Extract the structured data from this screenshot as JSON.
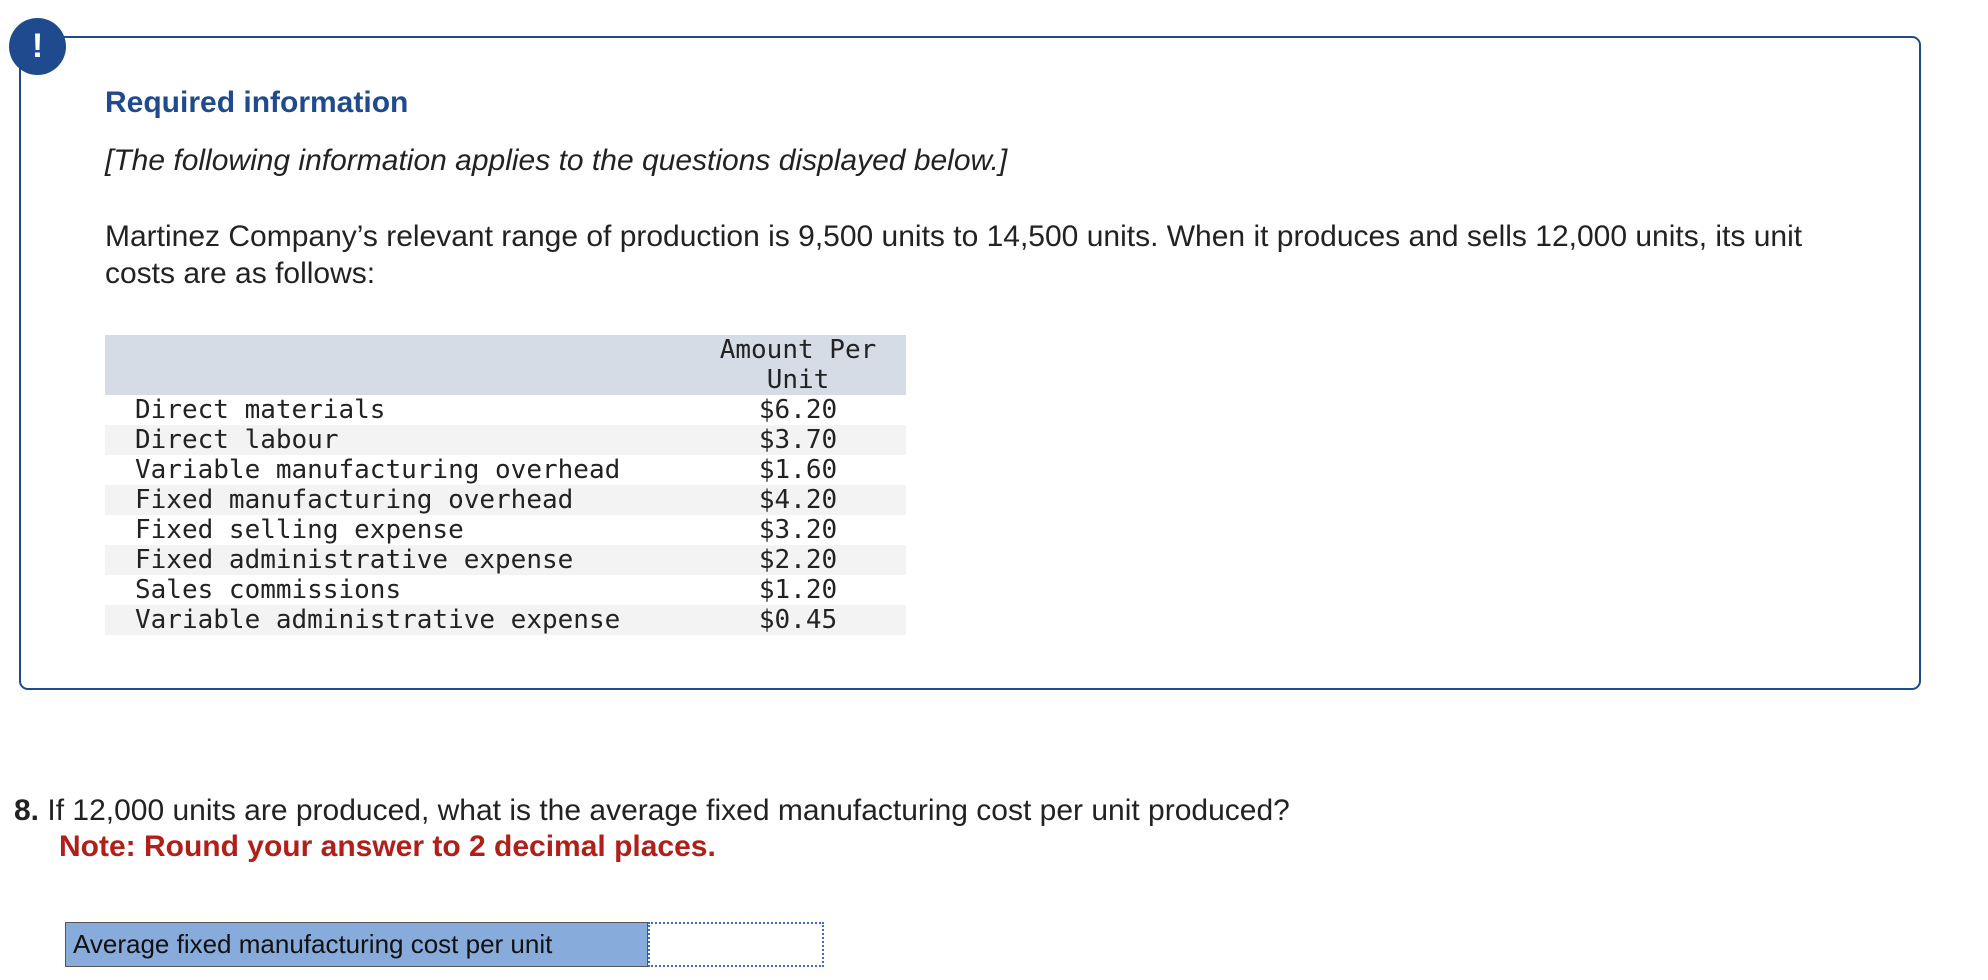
{
  "alert": {
    "icon": "exclamation-icon",
    "symbol": "!"
  },
  "info": {
    "title": "Required information",
    "note": "[The following information applies to the questions displayed below.]",
    "description": "Martinez Company’s relevant range of production is 9,500 units to 14,500 units. When it produces and sells 12,000 units, its unit costs are as follows:"
  },
  "table": {
    "headers": {
      "item": "",
      "amount": "Amount Per Unit"
    },
    "rows": [
      {
        "item": "Direct materials",
        "amount": "$6.20"
      },
      {
        "item": "Direct labour",
        "amount": "$3.70"
      },
      {
        "item": "Variable manufacturing overhead",
        "amount": "$1.60"
      },
      {
        "item": "Fixed manufacturing overhead",
        "amount": "$4.20"
      },
      {
        "item": "Fixed selling expense",
        "amount": "$3.20"
      },
      {
        "item": "Fixed administrative expense",
        "amount": "$2.20"
      },
      {
        "item": "Sales commissions",
        "amount": "$1.20"
      },
      {
        "item": "Variable administrative expense",
        "amount": "$0.45"
      }
    ]
  },
  "question": {
    "number": "8.",
    "text": "If 12,000 units are produced, what is the average fixed manufacturing cost per unit produced?",
    "note": "Note: Round your answer to 2 decimal places."
  },
  "answer": {
    "label": "Average fixed manufacturing cost per unit",
    "value": ""
  },
  "colors": {
    "accent": "#1f4b8e",
    "note": "#b02019",
    "label_bg": "#87acdc",
    "header_bg": "#d6dce6"
  }
}
